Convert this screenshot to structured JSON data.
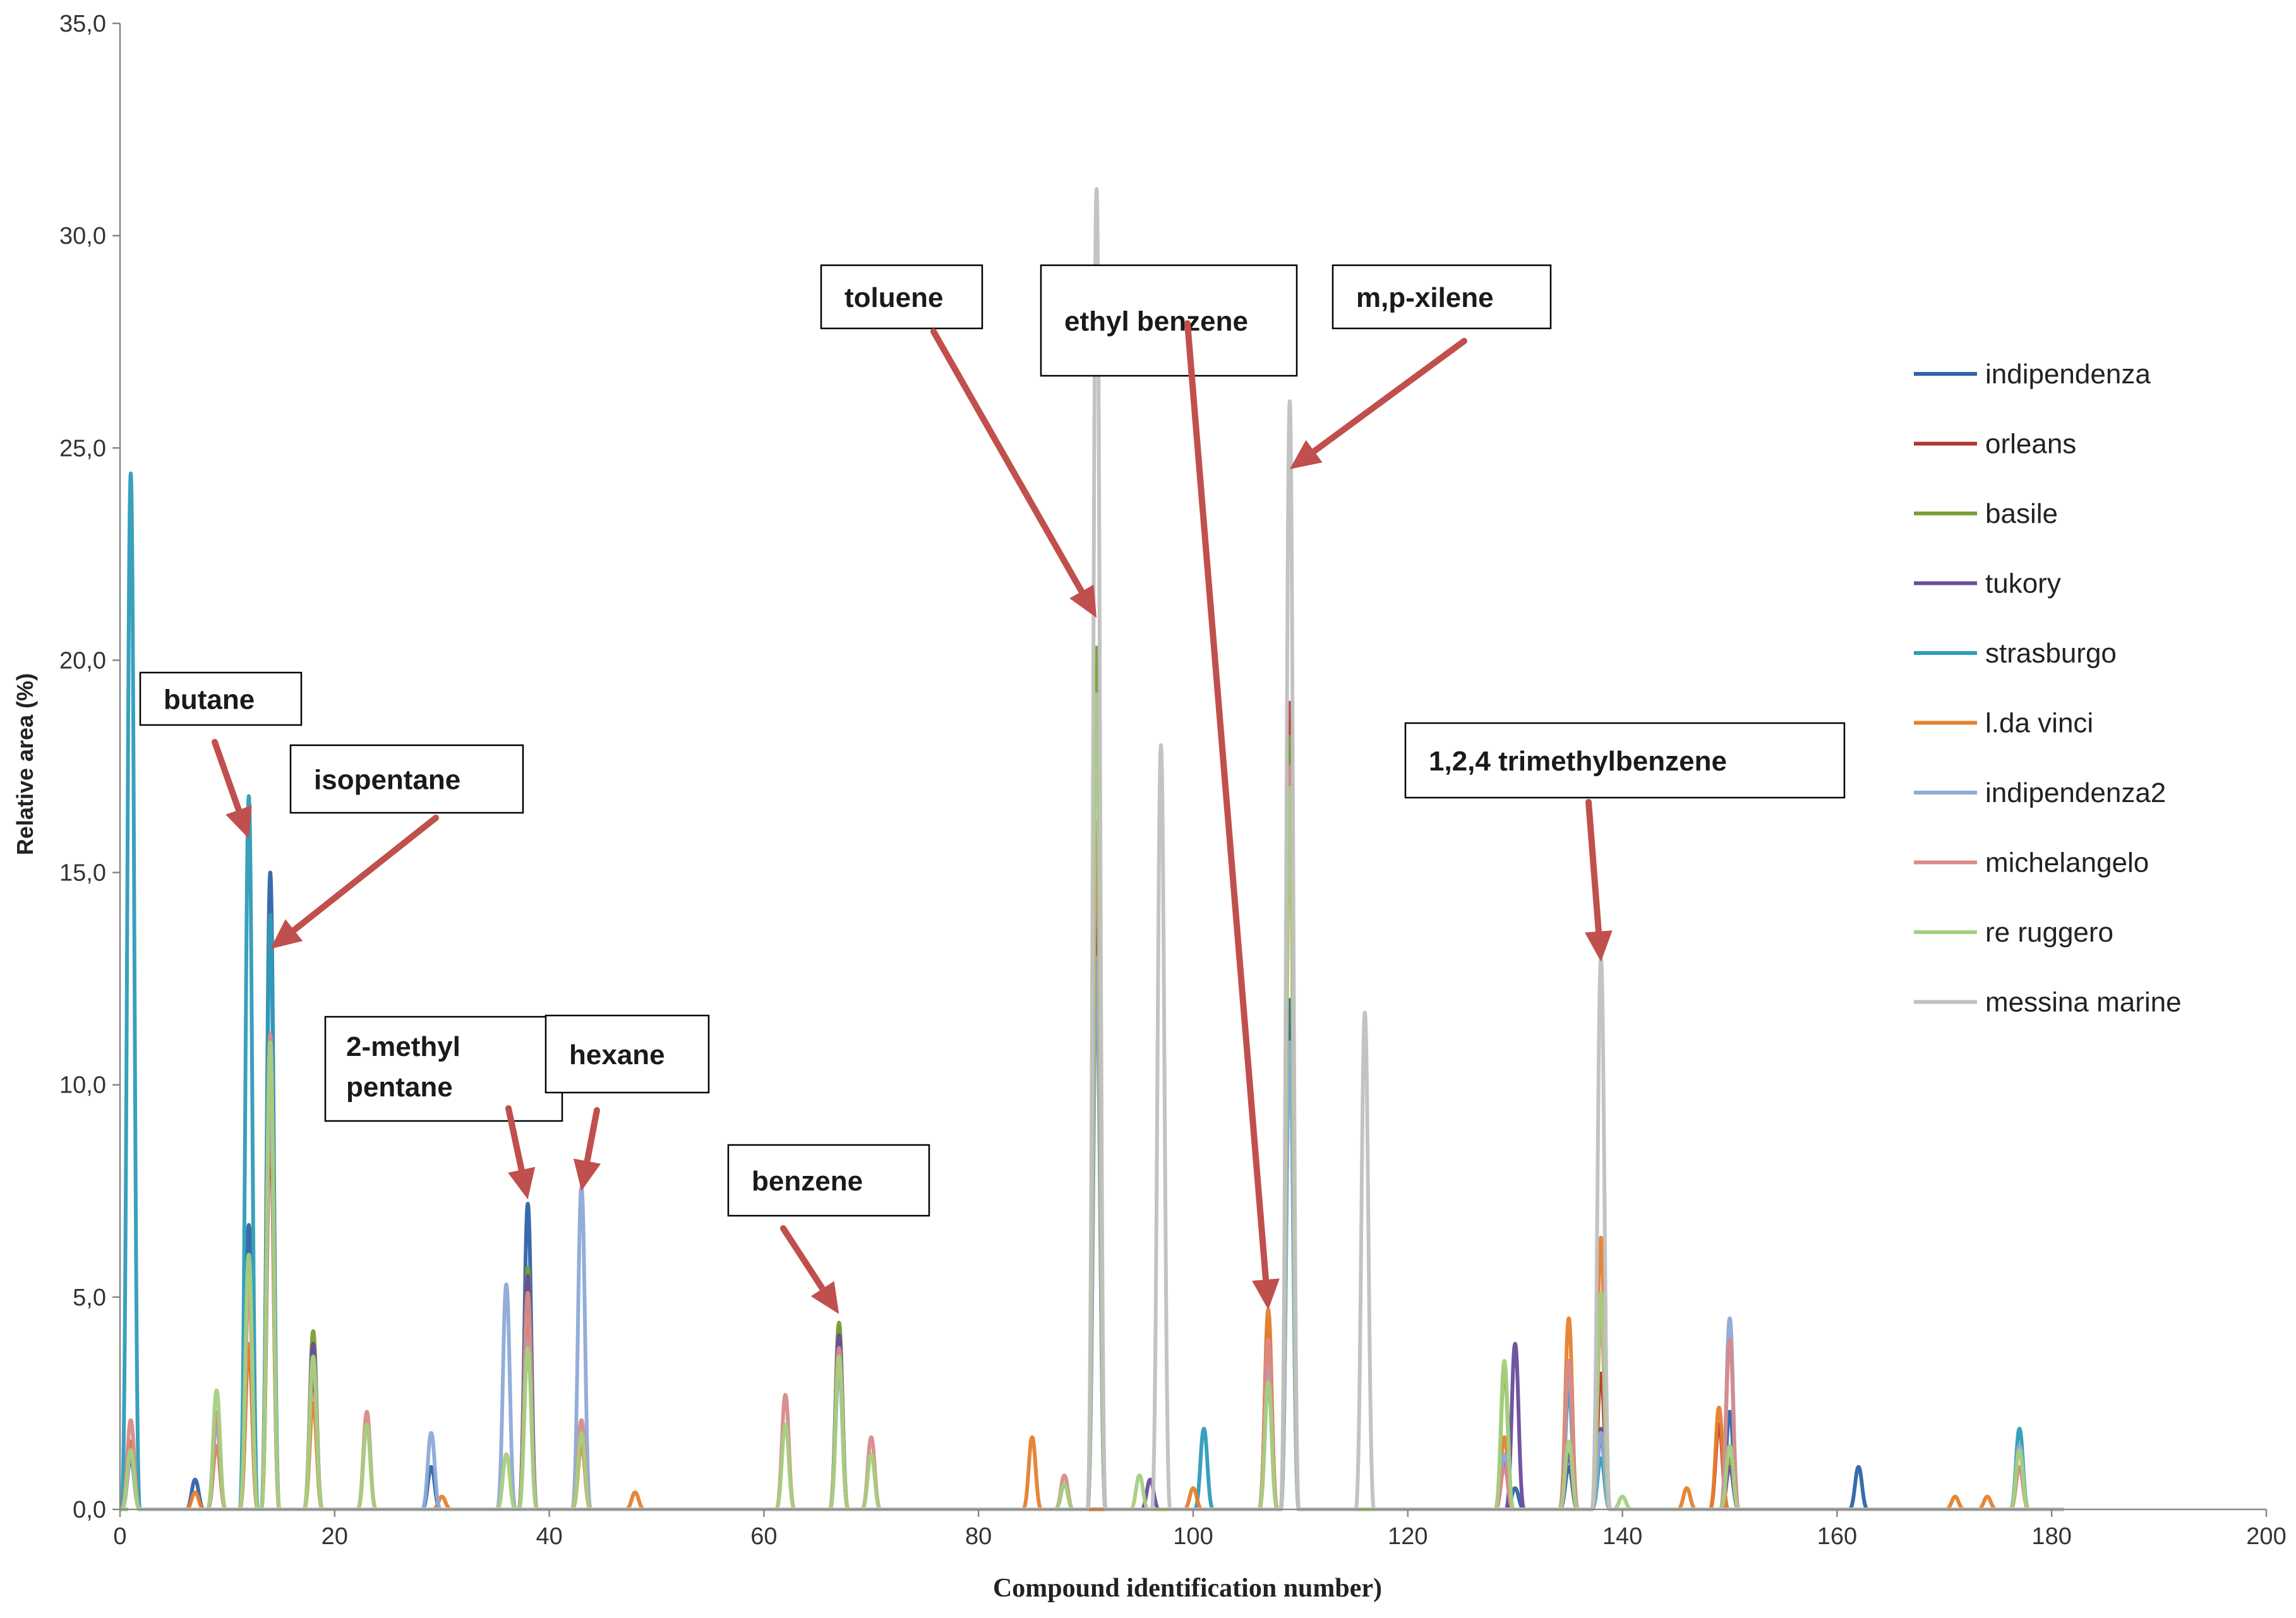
{
  "chart_data": {
    "type": "line",
    "title": "",
    "xlabel": "Compound identification number)",
    "ylabel": "Relative area (%)",
    "xlim": [
      0,
      200
    ],
    "ylim": [
      0,
      35
    ],
    "x_ticks": [
      0,
      20,
      40,
      60,
      80,
      100,
      120,
      140,
      160,
      180,
      200
    ],
    "y_ticks": [
      "0,0",
      "5,0",
      "10,0",
      "15,0",
      "20,0",
      "25,0",
      "30,0",
      "35,0"
    ],
    "legend_position": "right",
    "grid": false,
    "series": [
      {
        "name": "indipendenza",
        "color": "#2E63A8",
        "points": [
          [
            1,
            1.6
          ],
          [
            7,
            0.7
          ],
          [
            12,
            6.7
          ],
          [
            14,
            15.0
          ],
          [
            18,
            3.8
          ],
          [
            29,
            1.0
          ],
          [
            38,
            7.2
          ],
          [
            67,
            4.3
          ],
          [
            91,
            14.5
          ],
          [
            107,
            4.0
          ],
          [
            109,
            12.0
          ],
          [
            130,
            0.5
          ],
          [
            135,
            1.0
          ],
          [
            138,
            1.7
          ],
          [
            150,
            2.3
          ],
          [
            162,
            1.0
          ]
        ]
      },
      {
        "name": "orleans",
        "color": "#B5342E",
        "points": [
          [
            1,
            1.4
          ],
          [
            12,
            3.8
          ],
          [
            14,
            9.0
          ],
          [
            18,
            3.2
          ],
          [
            38,
            4.8
          ],
          [
            67,
            3.9
          ],
          [
            91,
            15.5
          ],
          [
            107,
            4.5
          ],
          [
            109,
            19.0
          ],
          [
            129,
            1.1
          ],
          [
            135,
            3.5
          ],
          [
            138,
            3.2
          ],
          [
            149,
            2.0
          ]
        ]
      },
      {
        "name": "basile",
        "color": "#77A030",
        "points": [
          [
            1,
            1.5
          ],
          [
            12,
            5.5
          ],
          [
            14,
            9.6
          ],
          [
            18,
            4.2
          ],
          [
            38,
            5.7
          ],
          [
            67,
            4.4
          ],
          [
            91,
            20.3
          ],
          [
            107,
            4.5
          ],
          [
            109,
            18.2
          ],
          [
            129,
            3.3
          ],
          [
            138,
            5.0
          ],
          [
            150,
            1.2
          ]
        ]
      },
      {
        "name": "tukory",
        "color": "#6A4C9C",
        "points": [
          [
            1,
            1.2
          ],
          [
            12,
            5.9
          ],
          [
            14,
            10.4
          ],
          [
            18,
            3.9
          ],
          [
            38,
            5.5
          ],
          [
            67,
            4.1
          ],
          [
            91,
            16.0
          ],
          [
            96,
            0.7
          ],
          [
            107,
            4.2
          ],
          [
            109,
            17.2
          ],
          [
            130,
            3.9
          ],
          [
            135,
            1.3
          ],
          [
            138,
            1.9
          ],
          [
            150,
            1.0
          ]
        ]
      },
      {
        "name": "strasburgo",
        "color": "#2D9CB8",
        "points": [
          [
            1,
            24.4
          ],
          [
            12,
            16.8
          ],
          [
            14,
            14.0
          ],
          [
            18,
            3.5
          ],
          [
            38,
            4.5
          ],
          [
            67,
            3.4
          ],
          [
            91,
            12.5
          ],
          [
            101,
            1.9
          ],
          [
            107,
            3.0
          ],
          [
            109,
            11.0
          ],
          [
            135,
            2.8
          ],
          [
            138,
            1.2
          ],
          [
            177,
            1.9
          ]
        ]
      },
      {
        "name": "l.da vinci",
        "color": "#E6802E",
        "points": [
          [
            1,
            1.6
          ],
          [
            7,
            0.4
          ],
          [
            9,
            1.5
          ],
          [
            12,
            3.9
          ],
          [
            14,
            9.5
          ],
          [
            18,
            2.5
          ],
          [
            23,
            2.0
          ],
          [
            30,
            0.3
          ],
          [
            38,
            4.5
          ],
          [
            43,
            1.5
          ],
          [
            48,
            0.4
          ],
          [
            67,
            3.5
          ],
          [
            85,
            1.7
          ],
          [
            88,
            0.6
          ],
          [
            100,
            0.5
          ],
          [
            107,
            4.7
          ],
          [
            109,
            16.5
          ],
          [
            129,
            1.7
          ],
          [
            135,
            4.5
          ],
          [
            138,
            6.4
          ],
          [
            146,
            0.5
          ],
          [
            149,
            2.4
          ],
          [
            171,
            0.3
          ],
          [
            174,
            0.3
          ],
          [
            177,
            1.0
          ]
        ]
      },
      {
        "name": "indipendenza2",
        "color": "#8EA9D8",
        "points": [
          [
            1,
            1.3
          ],
          [
            9,
            2.0
          ],
          [
            12,
            5.5
          ],
          [
            14,
            10.0
          ],
          [
            18,
            3.5
          ],
          [
            29,
            1.8
          ],
          [
            36,
            5.3
          ],
          [
            38,
            4.0
          ],
          [
            43,
            7.6
          ],
          [
            67,
            3.3
          ],
          [
            88,
            0.6
          ],
          [
            91,
            13.0
          ],
          [
            107,
            3.3
          ],
          [
            109,
            11.0
          ],
          [
            129,
            1.3
          ],
          [
            135,
            3.3
          ],
          [
            138,
            1.8
          ],
          [
            150,
            4.5
          ],
          [
            177,
            1.5
          ]
        ]
      },
      {
        "name": "michelangelo",
        "color": "#D88A8A",
        "points": [
          [
            1,
            2.1
          ],
          [
            9,
            2.3
          ],
          [
            12,
            5.2
          ],
          [
            14,
            11.2
          ],
          [
            18,
            3.6
          ],
          [
            23,
            2.3
          ],
          [
            38,
            5.1
          ],
          [
            43,
            2.1
          ],
          [
            62,
            2.7
          ],
          [
            67,
            3.8
          ],
          [
            70,
            1.7
          ],
          [
            88,
            0.8
          ],
          [
            91,
            16.2
          ],
          [
            107,
            4.0
          ],
          [
            109,
            17.5
          ],
          [
            129,
            1.0
          ],
          [
            135,
            3.5
          ],
          [
            138,
            4.5
          ],
          [
            150,
            4.0
          ],
          [
            177,
            1.0
          ]
        ]
      },
      {
        "name": "re ruggero",
        "color": "#A5CF7E",
        "points": [
          [
            1,
            1.4
          ],
          [
            9,
            2.8
          ],
          [
            12,
            6.0
          ],
          [
            14,
            11.0
          ],
          [
            18,
            3.6
          ],
          [
            23,
            2.0
          ],
          [
            36,
            1.3
          ],
          [
            38,
            3.8
          ],
          [
            43,
            1.8
          ],
          [
            62,
            2.0
          ],
          [
            67,
            3.6
          ],
          [
            70,
            1.3
          ],
          [
            88,
            0.6
          ],
          [
            91,
            19.2
          ],
          [
            95,
            0.8
          ],
          [
            107,
            3.0
          ],
          [
            109,
            17.0
          ],
          [
            129,
            3.5
          ],
          [
            135,
            1.6
          ],
          [
            138,
            5.1
          ],
          [
            140,
            0.3
          ],
          [
            150,
            1.5
          ],
          [
            177,
            1.4
          ]
        ]
      },
      {
        "name": "messina marine",
        "color": "#C0C0C0",
        "points": [
          [
            91,
            31.1
          ],
          [
            97,
            18.0
          ],
          [
            109,
            26.1
          ],
          [
            116,
            11.7
          ],
          [
            138,
            13.0
          ]
        ]
      }
    ],
    "annotations": [
      {
        "text": "butane",
        "target": [
          12,
          15.8
        ]
      },
      {
        "text": "isopentane",
        "target": [
          14,
          13.2
        ]
      },
      {
        "text": "2-methyl\npentane",
        "target": [
          38,
          7.3
        ]
      },
      {
        "text": "hexane",
        "target": [
          43,
          7.5
        ]
      },
      {
        "text": "benzene",
        "target": [
          67,
          4.6
        ]
      },
      {
        "text": "toluene",
        "target": [
          91,
          21.0
        ]
      },
      {
        "text": "ethyl benzene",
        "target": [
          107,
          4.7
        ]
      },
      {
        "text": "m,p-xilene",
        "target": [
          109,
          24.5
        ]
      },
      {
        "text": "1,2,4 trimethylbenzene",
        "target": [
          138,
          12.9
        ]
      }
    ]
  }
}
